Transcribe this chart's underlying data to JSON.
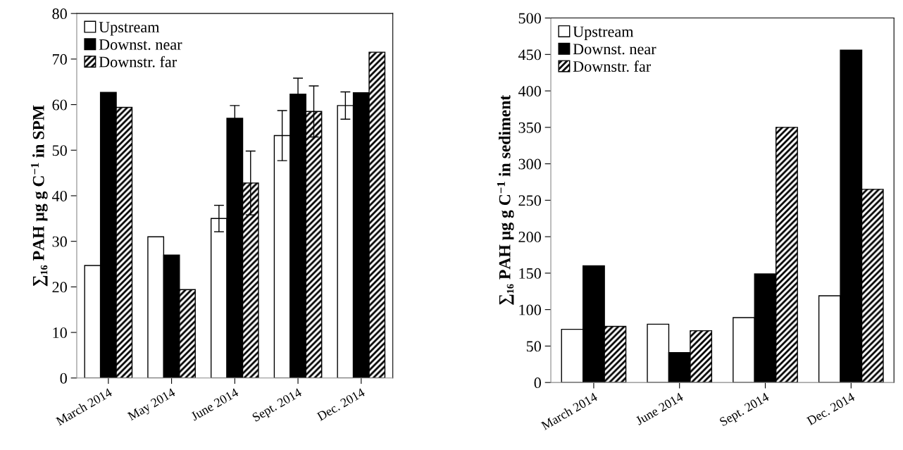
{
  "chart_data": [
    {
      "type": "bar",
      "ylabel": "∑₁₆ PAH µg g C$^{−1}$ in SPM",
      "categories": [
        "March 2014",
        "May 2014",
        "June 2014",
        "Sept. 2014",
        "Dec. 2014"
      ],
      "ylim": [
        0,
        80
      ],
      "yticks": [
        0,
        10,
        20,
        30,
        40,
        50,
        60,
        70,
        80
      ],
      "grid": false,
      "legend": "top left",
      "series": [
        {
          "name": "Upstream",
          "color": "#ffffff",
          "values": [
            24.7,
            31.0,
            35.0,
            53.2,
            59.8
          ],
          "errors": [
            null,
            null,
            2.9,
            5.5,
            3.0
          ]
        },
        {
          "name": "Downst. near",
          "color": "#000000",
          "values": [
            62.7,
            27.0,
            57.0,
            62.3,
            62.6
          ],
          "errors": [
            null,
            null,
            2.8,
            3.5,
            null
          ]
        },
        {
          "name": "Downstr. far",
          "color": "#000000",
          "values": [
            59.4,
            19.4,
            42.8,
            58.5,
            71.5
          ],
          "errors": [
            null,
            null,
            7.0,
            5.6,
            null
          ]
        }
      ]
    },
    {
      "type": "bar",
      "ylabel": "∑₁₆ PAH µg g C$^{−1}$ in sediment",
      "categories": [
        "March 2014",
        "June 2014",
        "Sept. 2014",
        "Dec. 2014"
      ],
      "ylim": [
        0,
        500
      ],
      "yticks": [
        0,
        50,
        100,
        150,
        200,
        250,
        300,
        350,
        400,
        450,
        500
      ],
      "grid": false,
      "legend": "top left",
      "series": [
        {
          "name": "Upstream",
          "color": "#ffffff",
          "values": [
            73,
            80,
            89,
            119
          ]
        },
        {
          "name": "Downst. near",
          "color": "#000000",
          "values": [
            160,
            41,
            149,
            456
          ]
        },
        {
          "name": "Downstr. far",
          "color": "#000000",
          "values": [
            77,
            71,
            350,
            265
          ]
        }
      ]
    }
  ]
}
